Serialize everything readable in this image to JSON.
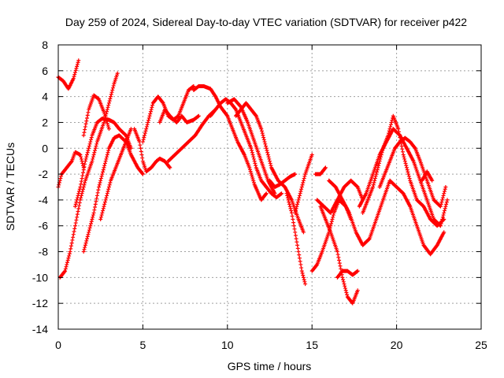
{
  "chart_data": {
    "type": "scatter",
    "title": "Day 259 of 2024, Sidereal Day-to-day VTEC variation (SDTVAR) for receiver p422",
    "xlabel": "GPS time / hours",
    "ylabel": "SDTVAR / TECUs",
    "xlim": [
      0,
      25
    ],
    "ylim": [
      -14,
      8
    ],
    "xticks": [
      "0",
      "5",
      "10",
      "15",
      "20",
      "25"
    ],
    "yticks": [
      "-14",
      "-12",
      "-10",
      "-8",
      "-6",
      "-4",
      "-2",
      "0",
      "2",
      "4",
      "6",
      "8"
    ],
    "grid": true,
    "marker": "plus",
    "color": "#ff0000",
    "series": [
      {
        "x": [
          0.0,
          0.3,
          0.6,
          0.9,
          1.2
        ],
        "y": [
          5.5,
          5.2,
          4.6,
          5.4,
          6.8
        ]
      },
      {
        "x": [
          0.0,
          0.2,
          0.5,
          0.8,
          1.0,
          1.3,
          1.5
        ],
        "y": [
          -3.0,
          -2.0,
          -1.5,
          -1.0,
          -0.3,
          -0.5,
          -1.5
        ]
      },
      {
        "x": [
          0.1,
          0.4,
          0.7,
          1.0,
          1.3,
          1.6,
          2.0,
          2.3,
          2.7,
          3.0,
          3.3,
          3.5
        ],
        "y": [
          -10.0,
          -9.5,
          -8.0,
          -6.0,
          -4.0,
          -2.5,
          -1.0,
          0.5,
          2.0,
          3.5,
          5.0,
          5.8
        ]
      },
      {
        "x": [
          1.0,
          1.3,
          1.6,
          2.0,
          2.3,
          2.6,
          3.0,
          3.3,
          3.6,
          4.0,
          4.3
        ],
        "y": [
          -4.5,
          -3.0,
          -1.0,
          1.0,
          2.0,
          2.3,
          2.2,
          2.0,
          1.5,
          1.0,
          0.0
        ]
      },
      {
        "x": [
          1.5,
          1.8,
          2.1,
          2.4,
          2.7,
          3.0
        ],
        "y": [
          1.0,
          3.0,
          4.1,
          3.8,
          2.8,
          1.5
        ]
      },
      {
        "x": [
          1.5,
          1.8,
          2.1,
          2.4,
          2.7,
          3.0,
          3.3,
          3.6,
          4.0,
          4.3,
          4.7,
          5.0
        ],
        "y": [
          -8.0,
          -6.5,
          -5.0,
          -3.0,
          -1.5,
          0.0,
          0.8,
          1.0,
          0.5,
          -0.5,
          -1.5,
          -2.0
        ]
      },
      {
        "x": [
          2.5,
          2.8,
          3.1,
          3.4,
          3.7,
          4.0,
          4.3
        ],
        "y": [
          -5.5,
          -4.0,
          -2.5,
          -1.5,
          -0.5,
          0.5,
          1.5
        ]
      },
      {
        "x": [
          4.5,
          4.8,
          5.0,
          5.2,
          5.5,
          5.8,
          6.0,
          6.3,
          6.6
        ],
        "y": [
          1.5,
          0.5,
          -1.0,
          -1.8,
          -1.5,
          -1.0,
          -0.8,
          -1.0,
          -1.5
        ]
      },
      {
        "x": [
          5.0,
          5.3,
          5.6,
          5.9,
          6.2,
          6.5,
          6.8,
          7.1,
          7.4,
          7.7,
          8.0
        ],
        "y": [
          0.5,
          2.0,
          3.5,
          4.0,
          3.5,
          2.5,
          2.2,
          2.5,
          3.5,
          4.5,
          4.8
        ]
      },
      {
        "x": [
          6.0,
          6.3,
          6.6,
          7.0,
          7.3,
          7.6,
          8.0,
          8.3
        ],
        "y": [
          2.0,
          3.0,
          2.5,
          2.0,
          2.5,
          2.0,
          2.2,
          2.5
        ]
      },
      {
        "x": [
          6.5,
          6.9,
          7.3,
          7.7,
          8.1,
          8.5,
          8.9,
          9.3
        ],
        "y": [
          -1.0,
          -0.5,
          0.0,
          0.5,
          1.0,
          1.8,
          2.5,
          3.0
        ]
      },
      {
        "x": [
          8.0,
          8.3,
          8.6,
          9.0,
          9.3,
          9.6,
          10.0,
          10.3,
          10.6,
          11.0,
          11.3,
          11.6,
          12.0,
          12.3
        ],
        "y": [
          4.5,
          4.8,
          4.8,
          4.6,
          4.0,
          3.2,
          2.5,
          1.5,
          0.5,
          -0.5,
          -1.5,
          -2.8,
          -4.0,
          -3.5
        ]
      },
      {
        "x": [
          9.0,
          9.3,
          9.6,
          9.9,
          10.2,
          10.5,
          10.8,
          11.1,
          11.4,
          11.7,
          12.0,
          12.3,
          12.6,
          12.9,
          13.2
        ],
        "y": [
          2.5,
          3.0,
          3.5,
          3.8,
          3.5,
          3.0,
          2.0,
          1.0,
          0.0,
          -1.5,
          -2.5,
          -3.0,
          -3.5,
          -3.8,
          -3.5
        ]
      },
      {
        "x": [
          10.0,
          10.4,
          10.8,
          11.2,
          11.6,
          12.0,
          12.4,
          12.8
        ],
        "y": [
          3.5,
          3.8,
          3.2,
          2.0,
          0.5,
          -1.0,
          -2.5,
          -3.5
        ]
      },
      {
        "x": [
          10.5,
          10.8,
          11.1,
          11.4,
          11.7,
          12.0,
          12.3,
          12.6,
          13.0,
          13.4,
          13.8,
          14.2,
          14.5
        ],
        "y": [
          2.5,
          3.0,
          3.5,
          3.0,
          2.5,
          1.5,
          0.0,
          -1.5,
          -2.5,
          -3.0,
          -4.0,
          -5.5,
          -6.5
        ]
      },
      {
        "x": [
          12.5,
          12.8,
          13.1,
          13.4,
          13.7,
          14.0
        ],
        "y": [
          -2.5,
          -3.0,
          -2.8,
          -2.5,
          -2.2,
          -2.0
        ]
      },
      {
        "x": [
          13.5,
          13.8,
          14.0,
          14.2,
          14.4,
          14.6
        ],
        "y": [
          -3.5,
          -5.0,
          -6.5,
          -8.0,
          -9.5,
          -10.5
        ]
      },
      {
        "x": [
          14.0,
          14.3,
          14.6,
          15.0
        ],
        "y": [
          -5.0,
          -3.5,
          -2.0,
          -0.5
        ]
      },
      {
        "x": [
          15.0,
          15.3,
          15.6,
          16.0,
          16.3,
          16.6,
          17.0,
          17.3
        ],
        "y": [
          -9.5,
          -9.0,
          -8.0,
          -6.5,
          -5.0,
          -4.0,
          -4.5,
          -5.5
        ]
      },
      {
        "x": [
          15.2,
          15.5,
          15.8
        ],
        "y": [
          -2.0,
          -2.0,
          -1.5
        ]
      },
      {
        "x": [
          15.3,
          15.7,
          16.1,
          16.5,
          16.9,
          17.3,
          17.7,
          18.0
        ],
        "y": [
          -4.0,
          -4.5,
          -5.0,
          -4.0,
          -3.0,
          -2.5,
          -3.0,
          -4.0
        ]
      },
      {
        "x": [
          15.5,
          15.8,
          16.1,
          16.5,
          16.8,
          17.1,
          17.4,
          17.7
        ],
        "y": [
          -4.5,
          -5.5,
          -6.5,
          -8.0,
          -10.0,
          -11.5,
          -12.0,
          -11.0
        ]
      },
      {
        "x": [
          16.5,
          16.8,
          17.1,
          17.4,
          17.7
        ],
        "y": [
          -10.0,
          -9.5,
          -9.5,
          -9.8,
          -9.5
        ]
      },
      {
        "x": [
          16.0,
          16.4,
          16.8,
          17.2,
          17.6,
          18.0,
          18.4,
          18.8,
          19.2,
          19.6,
          20.0,
          20.4,
          20.8,
          21.2,
          21.6,
          22.0,
          22.4,
          22.8
        ],
        "y": [
          -2.5,
          -3.0,
          -4.0,
          -5.0,
          -6.5,
          -7.5,
          -7.0,
          -5.5,
          -4.0,
          -2.5,
          -3.0,
          -3.5,
          -4.5,
          -6.0,
          -7.5,
          -8.2,
          -7.5,
          -6.5
        ]
      },
      {
        "x": [
          17.8,
          18.2,
          18.6,
          19.0,
          19.4,
          19.8,
          20.2,
          20.6,
          21.0,
          21.4,
          21.8,
          22.2,
          22.6,
          23.0
        ],
        "y": [
          -4.5,
          -3.5,
          -2.0,
          -0.5,
          0.5,
          1.5,
          1.0,
          0.0,
          -1.0,
          -2.5,
          -4.0,
          -5.5,
          -6.0,
          -4.0
        ]
      },
      {
        "x": [
          18.0,
          18.3,
          18.6,
          18.9,
          19.2,
          19.5,
          19.8,
          20.1,
          20.4,
          20.8,
          21.2,
          21.6,
          22.0,
          22.4,
          22.8
        ],
        "y": [
          -5.0,
          -4.0,
          -3.0,
          -1.5,
          0.0,
          1.0,
          2.5,
          1.5,
          -0.5,
          -2.5,
          -4.0,
          -4.5,
          -5.5,
          -6.0,
          -5.5
        ]
      },
      {
        "x": [
          19.0,
          19.3,
          19.6,
          19.9,
          20.2,
          20.5,
          20.8,
          21.1,
          21.4,
          21.8,
          22.2,
          22.6,
          22.9
        ],
        "y": [
          -3.0,
          -2.0,
          -1.0,
          0.0,
          0.5,
          0.8,
          0.5,
          0.0,
          -1.0,
          -2.5,
          -4.0,
          -4.5,
          -3.0
        ]
      },
      {
        "x": [
          21.5,
          21.8,
          22.1
        ],
        "y": [
          -2.5,
          -1.8,
          -2.5
        ]
      }
    ]
  }
}
